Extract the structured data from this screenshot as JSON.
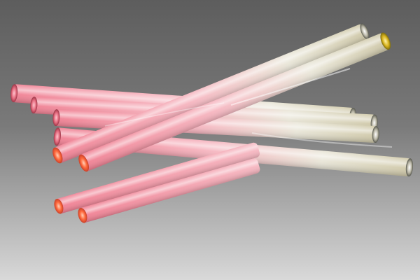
{
  "colors": {
    "background_top": "#5d5d5d",
    "background_mid": "#7a7a7a",
    "background_bottom": "#d9d9d9",
    "rod_pink": "#f07f92",
    "rod_pink_light": "#f6b7c1",
    "rod_end_orange": "#ff6a3d",
    "rod_clear": "#e9e6d8",
    "rod_champagne": "#cfc8a8",
    "rod_end_amber": "#d8b31d",
    "highlight": "#ffffff"
  },
  "scene": {
    "subject": "glass-rods",
    "rod_count": 8
  }
}
